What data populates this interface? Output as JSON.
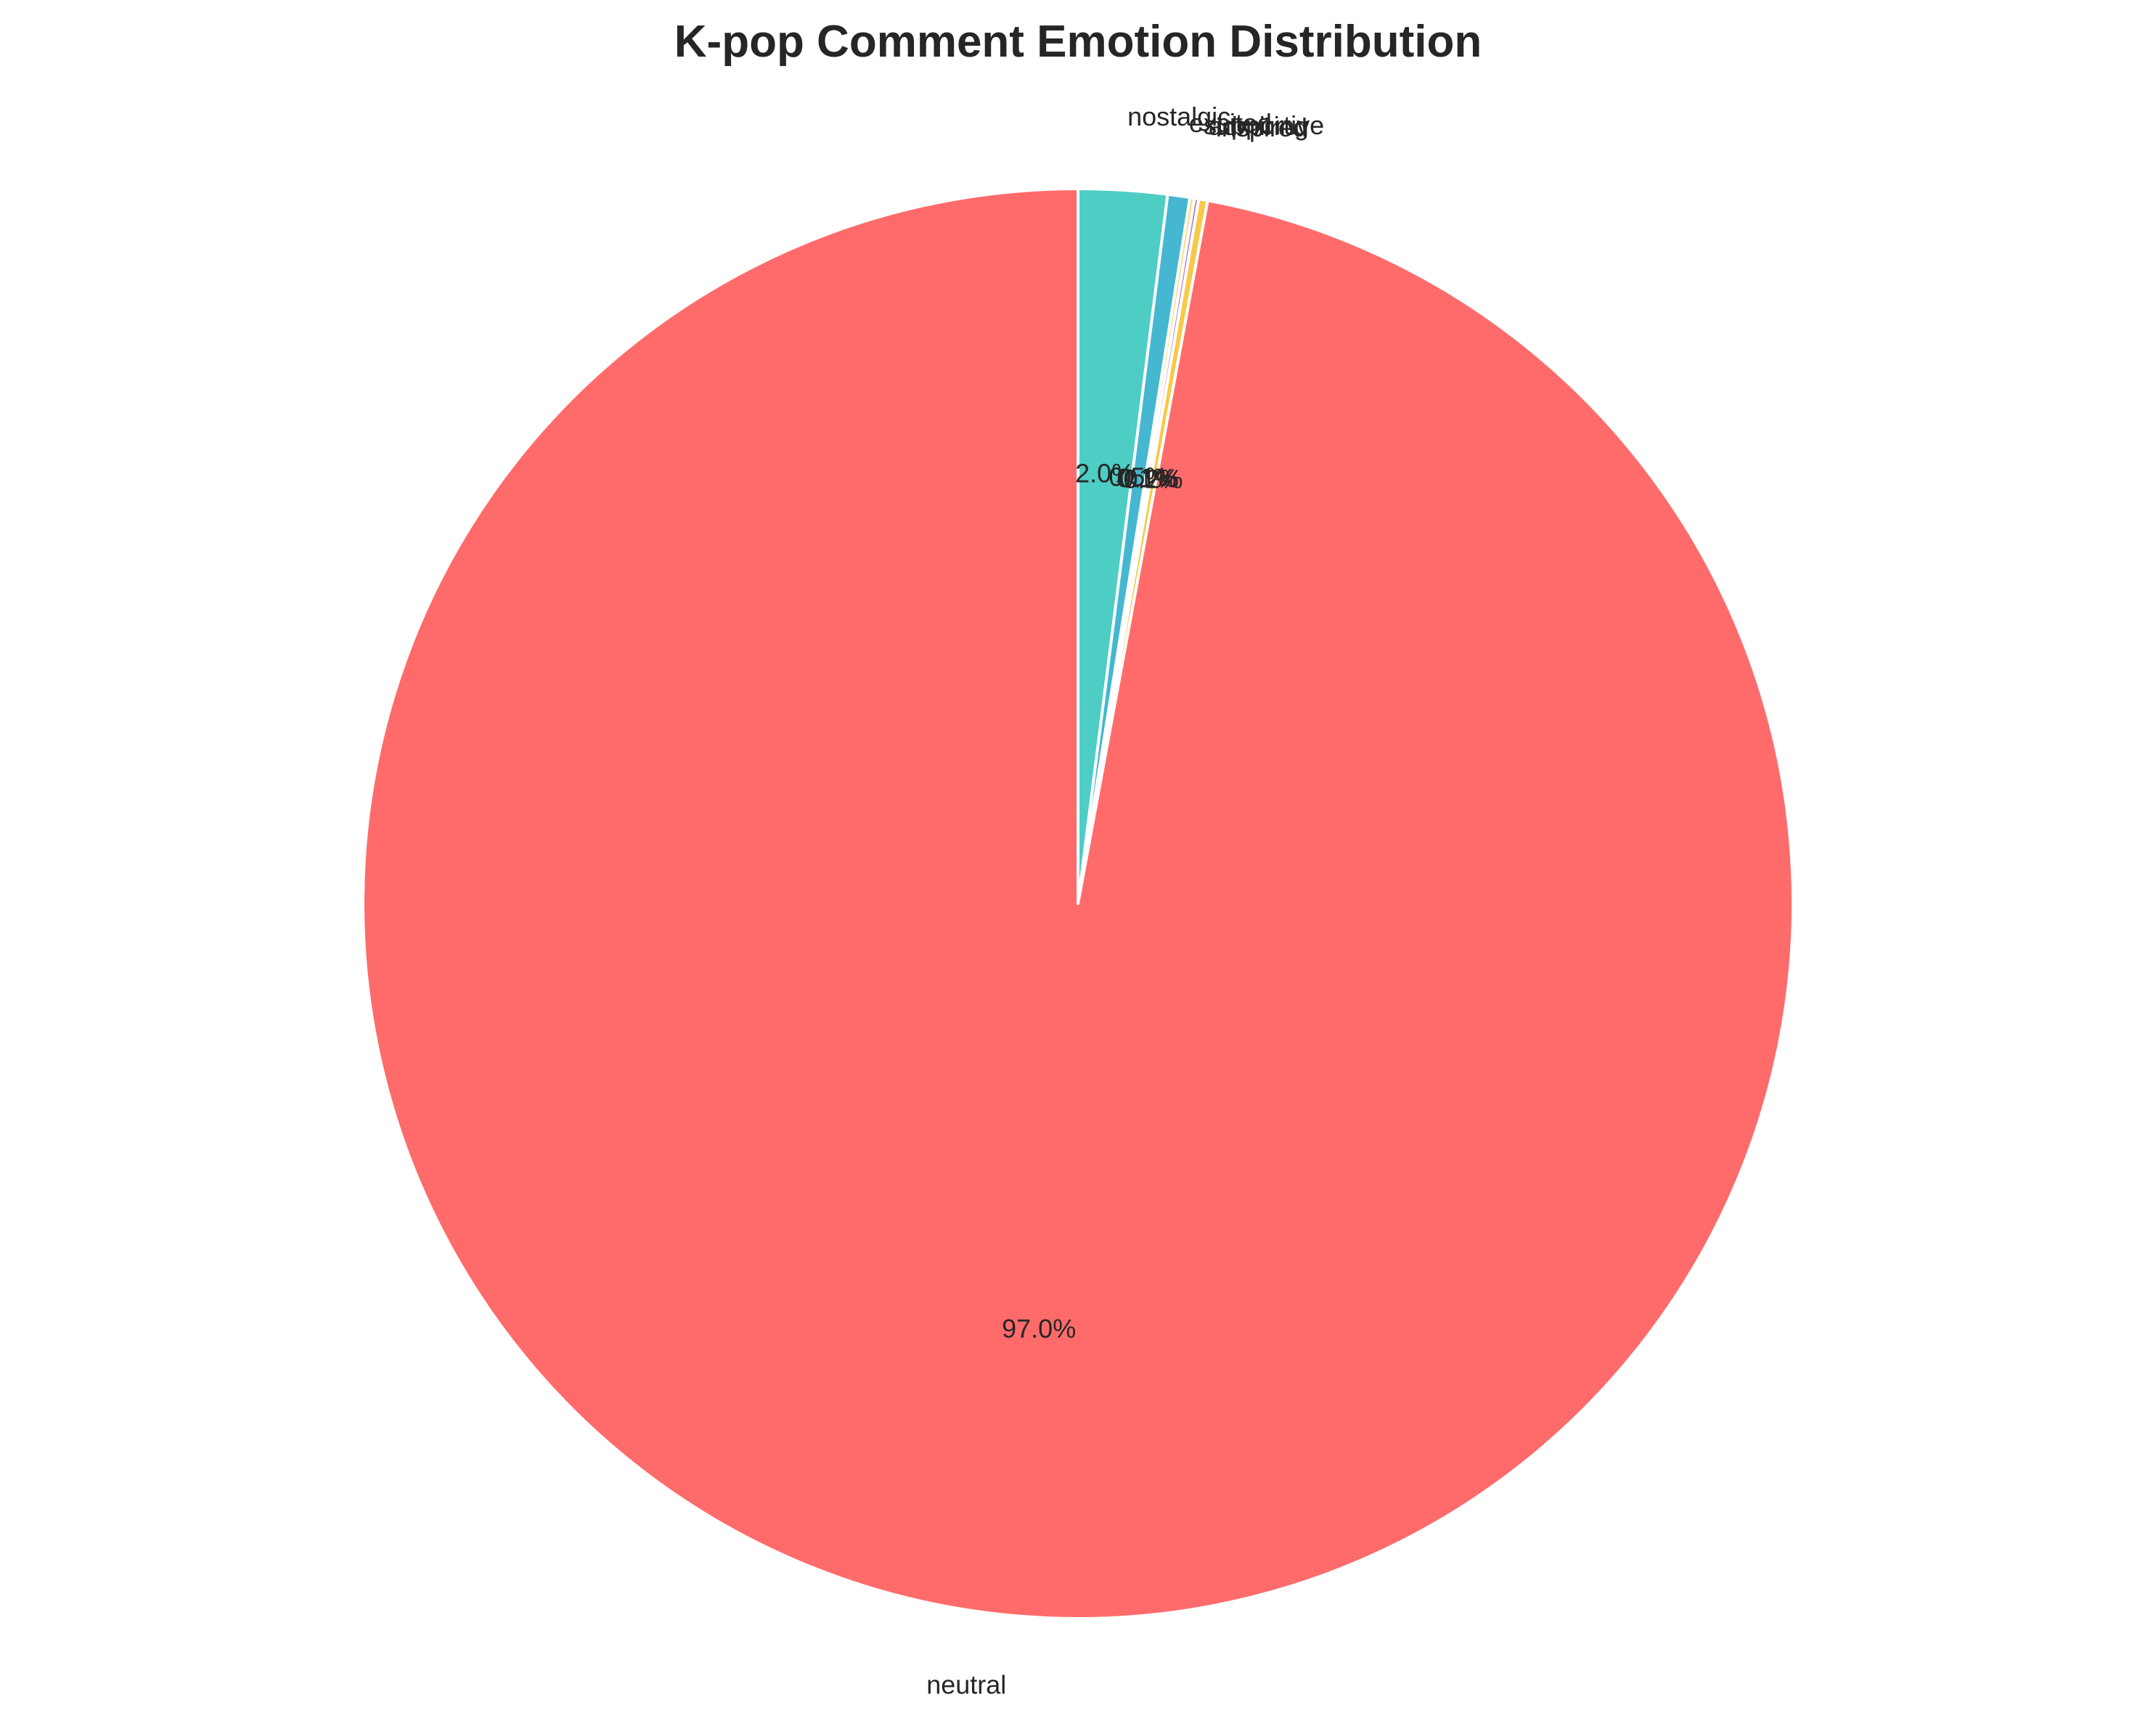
{
  "chart_data": {
    "type": "pie",
    "title": "K-pop Comment Emotion Distribution",
    "start_angle_deg": 90,
    "direction": "clockwise",
    "legend": "none",
    "slices": [
      {
        "label": "nostalgic",
        "value": 2.0,
        "pct_label": "2.0%",
        "color": "#4ECDC4"
      },
      {
        "label": "excited",
        "value": 0.5,
        "pct_label": "0.5%",
        "color": "#45B7D1"
      },
      {
        "label": "supportive",
        "value": 0.1,
        "pct_label": "0.1%",
        "color": "#F7DC6F"
      },
      {
        "label": "admiring",
        "value": 0.1,
        "pct_label": "0.1%",
        "color": "#BB8FCE"
      },
      {
        "label": "inspired",
        "value": 0.2,
        "pct_label": "0.2%",
        "color": "#F7C948"
      },
      {
        "label": "neutral",
        "value": 97.0,
        "pct_label": "97.0%",
        "color": "#FF6B6B"
      }
    ]
  }
}
